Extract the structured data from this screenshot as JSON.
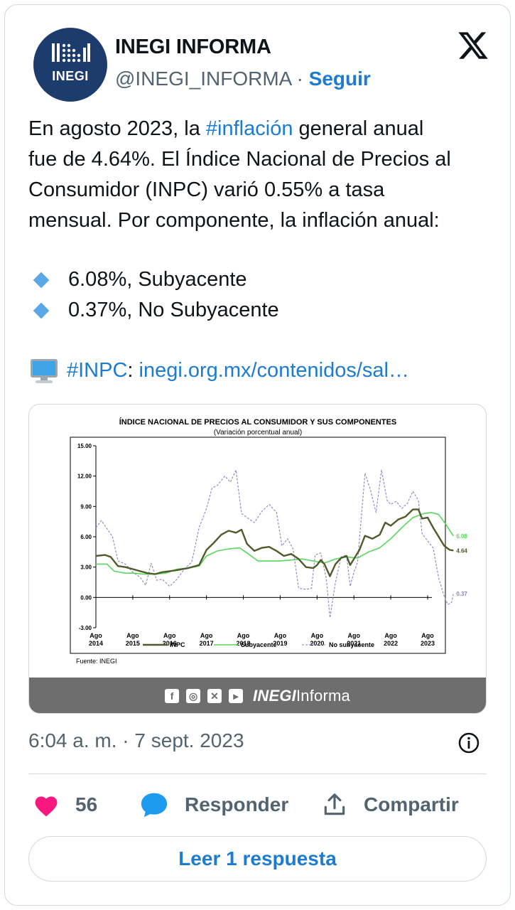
{
  "author": {
    "name": "INEGI INFORMA",
    "handle": "@INEGI_INFORMA",
    "separator": "·",
    "follow_label": "Seguir",
    "avatar_text": "INEGI"
  },
  "tweet": {
    "lines": [
      [
        "En agosto 2023, la ",
        "#inflación",
        " general anual"
      ],
      [
        "fue de 4.64%. El Índice Nacional de Precios al"
      ],
      [
        "Consumidor (INPC) varió 0.55% a tasa"
      ],
      [
        "mensual. Por componente, la inflación anual:"
      ]
    ],
    "bullets": [
      "6.08%, Subyacente",
      "0.37%, No Subyacente"
    ],
    "link_hashtag": "#INPC",
    "link_colon": ":",
    "link_url": "inegi.org.mx/contenidos/sal…"
  },
  "media": {
    "footer_brand_bold": "INEGI",
    "footer_brand_rest": "Informa",
    "social_icons": [
      "facebook-icon",
      "instagram-icon",
      "x-icon",
      "youtube-icon"
    ]
  },
  "timestamp": "6:04 a. m. · 7 sept. 2023",
  "actions": {
    "likes": "56",
    "reply_label": "Responder",
    "share_label": "Compartir"
  },
  "read_replies_label": "Leer 1 respuesta",
  "colors": {
    "accent": "#1d7bd0",
    "inpc": "#4f5b2a",
    "subyacente": "#57d85a",
    "no_subyacente": "#8f7fc4",
    "like": "#f91880"
  },
  "chart_data": {
    "type": "line",
    "title": "ÍNDICE NACIONAL DE PRECIOS AL CONSUMIDOR Y SUS COMPONENTES",
    "subtitle": "(Variación porcentual anual)",
    "source": "Fuente: INEGI",
    "ylim": [
      -3,
      15
    ],
    "yticks": [
      "15.00",
      "12.00",
      "9.00",
      "6.00",
      "3.00",
      "0.00",
      "-3.00"
    ],
    "xticks": [
      [
        "Ago",
        "2014"
      ],
      [
        "Ago",
        "2015"
      ],
      [
        "Ago",
        "2016"
      ],
      [
        "Ago",
        "2017"
      ],
      [
        "Ago",
        "2018"
      ],
      [
        "Ago",
        "2019"
      ],
      [
        "Ago",
        "2020"
      ],
      [
        "Ago",
        "2021"
      ],
      [
        "Ago",
        "2022"
      ],
      [
        "Ago",
        "2023"
      ]
    ],
    "x_start_year": 2014,
    "series": [
      {
        "name": "INPC",
        "end_label": "4.64",
        "points": [
          [
            2014.0,
            4.1
          ],
          [
            2014.25,
            4.2
          ],
          [
            2014.4,
            4.0
          ],
          [
            2014.6,
            3.1
          ],
          [
            2014.8,
            3.0
          ],
          [
            2015.0,
            2.8
          ],
          [
            2015.2,
            2.6
          ],
          [
            2015.4,
            2.4
          ],
          [
            2015.6,
            2.3
          ],
          [
            2015.8,
            2.5
          ],
          [
            2016.0,
            2.6
          ],
          [
            2016.2,
            2.7
          ],
          [
            2016.5,
            2.9
          ],
          [
            2016.8,
            3.2
          ],
          [
            2017.0,
            4.7
          ],
          [
            2017.2,
            5.4
          ],
          [
            2017.4,
            6.2
          ],
          [
            2017.6,
            6.6
          ],
          [
            2017.8,
            6.4
          ],
          [
            2017.95,
            6.7
          ],
          [
            2018.1,
            5.3
          ],
          [
            2018.3,
            4.6
          ],
          [
            2018.5,
            4.9
          ],
          [
            2018.7,
            5.0
          ],
          [
            2018.9,
            4.6
          ],
          [
            2019.1,
            4.1
          ],
          [
            2019.3,
            4.3
          ],
          [
            2019.5,
            3.8
          ],
          [
            2019.7,
            3.0
          ],
          [
            2019.9,
            2.9
          ],
          [
            2020.0,
            3.2
          ],
          [
            2020.1,
            3.7
          ],
          [
            2020.2,
            3.3
          ],
          [
            2020.35,
            2.1
          ],
          [
            2020.5,
            3.3
          ],
          [
            2020.65,
            3.9
          ],
          [
            2020.8,
            4.1
          ],
          [
            2020.9,
            3.2
          ],
          [
            2021.0,
            3.8
          ],
          [
            2021.15,
            4.7
          ],
          [
            2021.3,
            6.1
          ],
          [
            2021.5,
            5.8
          ],
          [
            2021.7,
            6.2
          ],
          [
            2021.85,
            7.4
          ],
          [
            2022.0,
            7.1
          ],
          [
            2022.2,
            7.7
          ],
          [
            2022.4,
            8.0
          ],
          [
            2022.6,
            8.7
          ],
          [
            2022.75,
            8.7
          ],
          [
            2022.85,
            7.8
          ],
          [
            2023.0,
            7.9
          ],
          [
            2023.15,
            6.9
          ],
          [
            2023.3,
            6.0
          ],
          [
            2023.45,
            5.1
          ],
          [
            2023.6,
            4.7
          ],
          [
            2023.7,
            4.64
          ]
        ]
      },
      {
        "name": "Subyacente",
        "end_label": "6.08",
        "points": [
          [
            2014.0,
            3.3
          ],
          [
            2014.3,
            3.3
          ],
          [
            2014.5,
            2.6
          ],
          [
            2014.8,
            2.4
          ],
          [
            2015.0,
            2.4
          ],
          [
            2015.3,
            2.3
          ],
          [
            2015.6,
            2.3
          ],
          [
            2015.9,
            2.4
          ],
          [
            2016.2,
            2.8
          ],
          [
            2016.5,
            2.9
          ],
          [
            2016.8,
            3.1
          ],
          [
            2017.0,
            4.1
          ],
          [
            2017.3,
            4.6
          ],
          [
            2017.6,
            4.8
          ],
          [
            2017.9,
            4.9
          ],
          [
            2018.1,
            4.4
          ],
          [
            2018.4,
            3.6
          ],
          [
            2018.7,
            3.6
          ],
          [
            2019.0,
            3.6
          ],
          [
            2019.3,
            3.7
          ],
          [
            2019.6,
            3.8
          ],
          [
            2019.9,
            3.6
          ],
          [
            2020.2,
            3.4
          ],
          [
            2020.5,
            3.8
          ],
          [
            2020.8,
            4.0
          ],
          [
            2021.1,
            3.9
          ],
          [
            2021.4,
            4.5
          ],
          [
            2021.7,
            4.9
          ],
          [
            2022.0,
            5.8
          ],
          [
            2022.3,
            6.9
          ],
          [
            2022.6,
            7.9
          ],
          [
            2022.9,
            8.3
          ],
          [
            2023.1,
            8.4
          ],
          [
            2023.3,
            8.2
          ],
          [
            2023.5,
            7.2
          ],
          [
            2023.7,
            6.08
          ]
        ]
      },
      {
        "name": "No subyacente",
        "end_label": "0.37",
        "points": [
          [
            2014.0,
            6.9
          ],
          [
            2014.15,
            7.6
          ],
          [
            2014.3,
            6.8
          ],
          [
            2014.45,
            6.0
          ],
          [
            2014.6,
            3.6
          ],
          [
            2014.8,
            3.3
          ],
          [
            2015.0,
            2.5
          ],
          [
            2015.2,
            2.0
          ],
          [
            2015.35,
            1.2
          ],
          [
            2015.5,
            3.4
          ],
          [
            2015.65,
            1.7
          ],
          [
            2015.8,
            1.8
          ],
          [
            2016.0,
            1.1
          ],
          [
            2016.2,
            1.8
          ],
          [
            2016.4,
            2.8
          ],
          [
            2016.6,
            3.5
          ],
          [
            2016.8,
            6.9
          ],
          [
            2017.0,
            8.8
          ],
          [
            2017.15,
            10.8
          ],
          [
            2017.3,
            11.1
          ],
          [
            2017.5,
            12.0
          ],
          [
            2017.65,
            11.4
          ],
          [
            2017.8,
            12.6
          ],
          [
            2017.95,
            8.3
          ],
          [
            2018.1,
            7.9
          ],
          [
            2018.3,
            7.4
          ],
          [
            2018.5,
            8.5
          ],
          [
            2018.7,
            9.2
          ],
          [
            2018.9,
            8.4
          ],
          [
            2019.05,
            5.1
          ],
          [
            2019.2,
            5.8
          ],
          [
            2019.35,
            4.8
          ],
          [
            2019.5,
            0.9
          ],
          [
            2019.7,
            0.8
          ],
          [
            2019.85,
            0.9
          ],
          [
            2019.95,
            4.2
          ],
          [
            2020.1,
            4.4
          ],
          [
            2020.25,
            1.9
          ],
          [
            2020.35,
            -2.0
          ],
          [
            2020.5,
            1.5
          ],
          [
            2020.65,
            4.0
          ],
          [
            2020.8,
            4.2
          ],
          [
            2020.9,
            1.1
          ],
          [
            2021.0,
            2.5
          ],
          [
            2021.1,
            3.5
          ],
          [
            2021.3,
            12.3
          ],
          [
            2021.45,
            10.6
          ],
          [
            2021.6,
            8.4
          ],
          [
            2021.75,
            12.6
          ],
          [
            2021.9,
            9.6
          ],
          [
            2022.0,
            9.2
          ],
          [
            2022.15,
            9.5
          ],
          [
            2022.3,
            8.8
          ],
          [
            2022.45,
            9.3
          ],
          [
            2022.6,
            10.5
          ],
          [
            2022.75,
            9.6
          ],
          [
            2022.85,
            6.3
          ],
          [
            2023.0,
            5.6
          ],
          [
            2023.15,
            4.9
          ],
          [
            2023.3,
            1.9
          ],
          [
            2023.45,
            0.1
          ],
          [
            2023.55,
            -0.7
          ],
          [
            2023.65,
            -0.5
          ],
          [
            2023.7,
            0.37
          ]
        ]
      }
    ],
    "legend": [
      "INPC",
      "Subyacente",
      "No subyacente"
    ],
    "legend_placement": "bottom",
    "grid": false
  }
}
